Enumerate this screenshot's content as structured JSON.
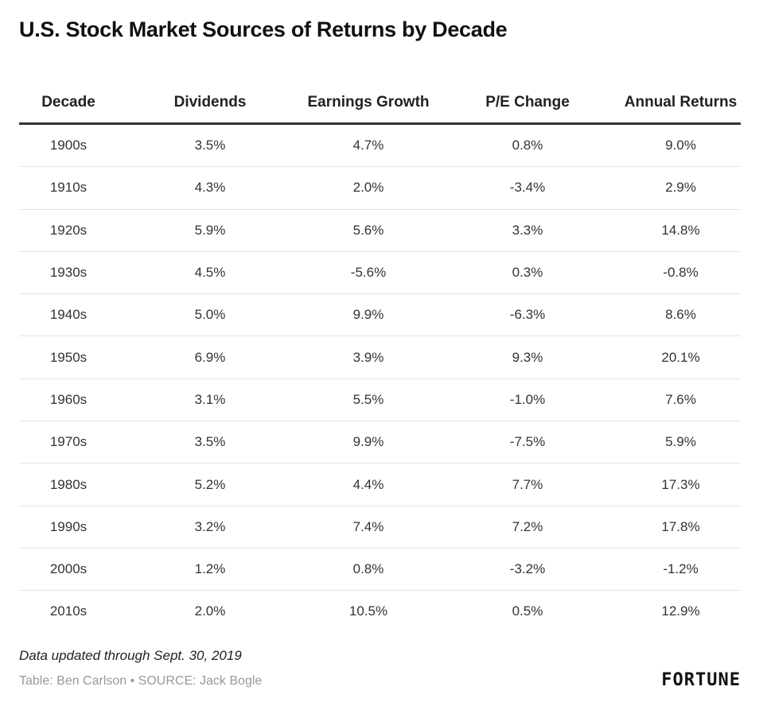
{
  "title": "U.S. Stock Market Sources of Returns by Decade",
  "footnote": "Data updated through Sept. 30, 2019",
  "source": "Table: Ben Carlson • SOURCE: Jack Bogle",
  "brand": "FORTUNE",
  "chart_data": {
    "type": "table",
    "columns": [
      "Decade",
      "Dividends",
      "Earnings Growth",
      "P/E Change",
      "Annual Returns"
    ],
    "rows": [
      [
        "1900s",
        "3.5%",
        "4.7%",
        "0.8%",
        "9.0%"
      ],
      [
        "1910s",
        "4.3%",
        "2.0%",
        "-3.4%",
        "2.9%"
      ],
      [
        "1920s",
        "5.9%",
        "5.6%",
        "3.3%",
        "14.8%"
      ],
      [
        "1930s",
        "4.5%",
        "-5.6%",
        "0.3%",
        "-0.8%"
      ],
      [
        "1940s",
        "5.0%",
        "9.9%",
        "-6.3%",
        "8.6%"
      ],
      [
        "1950s",
        "6.9%",
        "3.9%",
        "9.3%",
        "20.1%"
      ],
      [
        "1960s",
        "3.1%",
        "5.5%",
        "-1.0%",
        "7.6%"
      ],
      [
        "1970s",
        "3.5%",
        "9.9%",
        "-7.5%",
        "5.9%"
      ],
      [
        "1980s",
        "5.2%",
        "4.4%",
        "7.7%",
        "17.3%"
      ],
      [
        "1990s",
        "3.2%",
        "7.4%",
        "7.2%",
        "17.8%"
      ],
      [
        "2000s",
        "1.2%",
        "0.8%",
        "-3.2%",
        "-1.2%"
      ],
      [
        "2010s",
        "2.0%",
        "10.5%",
        "0.5%",
        "12.9%"
      ]
    ]
  }
}
